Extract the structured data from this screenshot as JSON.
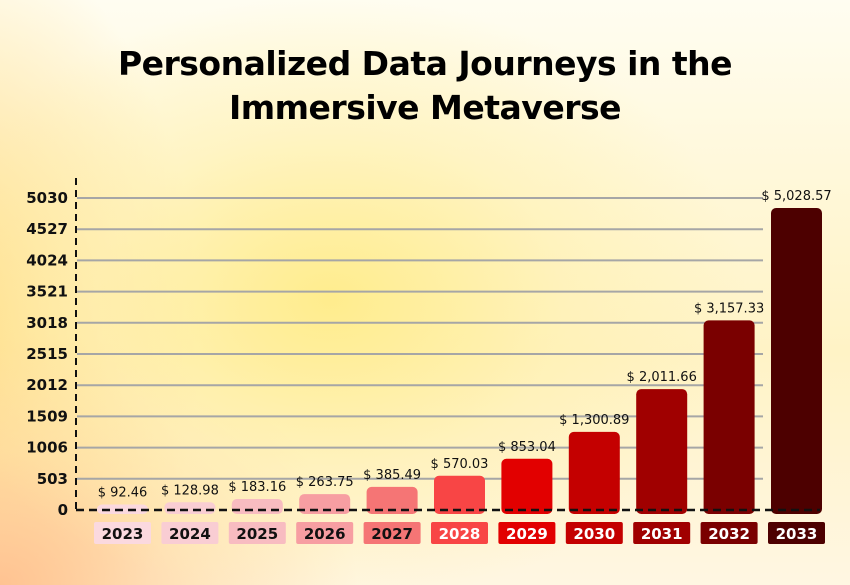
{
  "chart_data": {
    "type": "bar",
    "title": "Personalized Data Journeys in the Immersive Metaverse",
    "title_lines": [
      "Personalized Data Journeys in the",
      "Immersive Metaverse"
    ],
    "xlabel": "",
    "ylabel": "",
    "categories": [
      "2023",
      "2024",
      "2025",
      "2026",
      "2027",
      "2028",
      "2029",
      "2030",
      "2031",
      "2032",
      "2033"
    ],
    "values": [
      92.46,
      128.98,
      183.16,
      263.75,
      385.49,
      570.03,
      853.04,
      1300.89,
      2011.66,
      3157.33,
      5028.57
    ],
    "value_labels": [
      "$ 92.46",
      "$ 128.98",
      "$ 183.16",
      "$ 263.75",
      "$ 385.49",
      "$ 570.03",
      "$ 853.04",
      "$ 1,300.89",
      "$ 2,011.66",
      "$ 3,157.33",
      "$ 5,028.57"
    ],
    "colors": [
      "#fbd9df",
      "#f9cdd3",
      "#f8bcc1",
      "#f79ea2",
      "#f57575",
      "#f84545",
      "#e20000",
      "#c40000",
      "#a00000",
      "#7a0000",
      "#4d0000"
    ],
    "label_text_colors": [
      "#111111",
      "#111111",
      "#111111",
      "#111111",
      "#111111",
      "#ffffff",
      "#ffffff",
      "#ffffff",
      "#ffffff",
      "#ffffff",
      "#ffffff"
    ],
    "yticks": [
      0,
      503,
      1006,
      1509,
      2012,
      2515,
      3018,
      3521,
      4024,
      4527,
      5030
    ],
    "ylim": [
      0,
      5030
    ],
    "grid": true,
    "gridline_color": "#a6a6a6",
    "legend": "none"
  }
}
